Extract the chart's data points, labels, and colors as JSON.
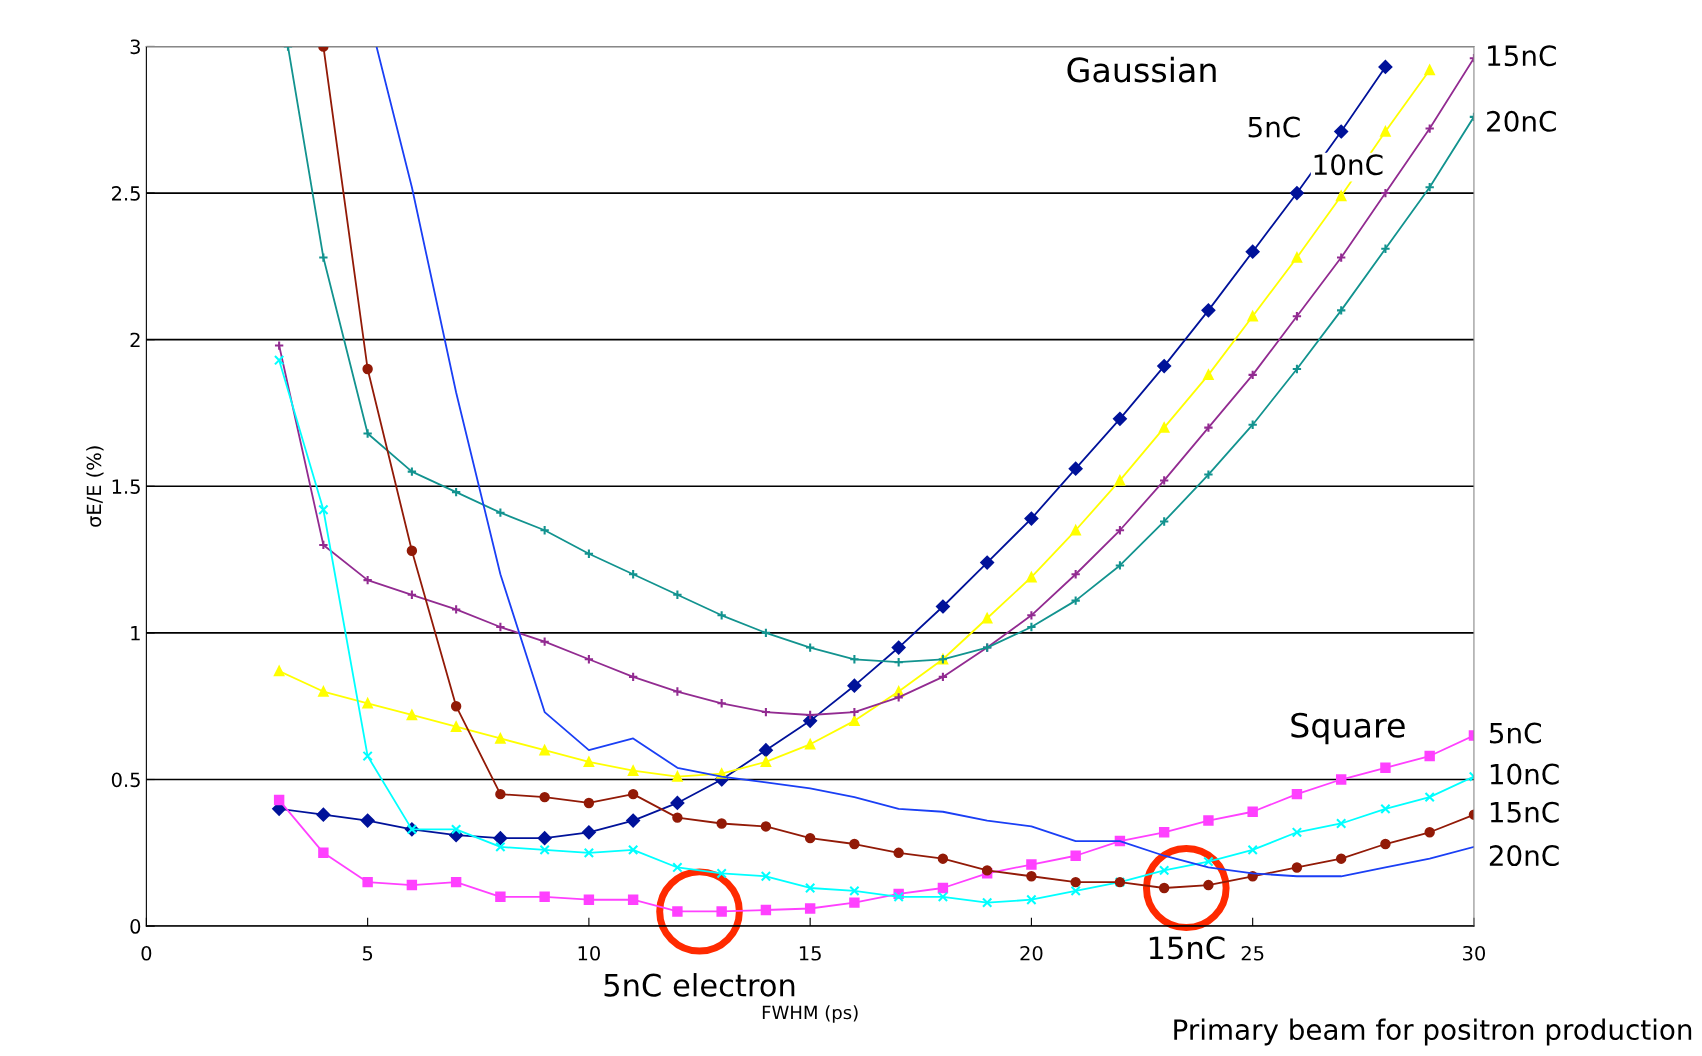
{
  "chart_data": {
    "type": "line",
    "xlabel": "FWHM (ps)",
    "ylabel": "σE/E (%)",
    "xlim": [
      0,
      30
    ],
    "xticks": [
      0,
      5,
      10,
      15,
      20,
      25,
      30
    ],
    "ylim": [
      0,
      3
    ],
    "yticks": [
      0,
      0.5,
      1,
      1.5,
      2,
      2.5,
      3
    ],
    "grid": "y",
    "legend": false,
    "series": [
      {
        "name": "5nC",
        "color": "#00129a",
        "marker": "diamond",
        "x": [
          3,
          4,
          5,
          6,
          7,
          8,
          9,
          10,
          11,
          12,
          13,
          14,
          15,
          16,
          17,
          18,
          19,
          20,
          21,
          22,
          23,
          24,
          25,
          26,
          27,
          28
        ],
        "values": [
          0.4,
          0.38,
          0.36,
          0.33,
          0.31,
          0.3,
          0.3,
          0.32,
          0.36,
          0.42,
          0.5,
          0.6,
          0.7,
          0.82,
          0.95,
          1.09,
          1.24,
          1.39,
          1.56,
          1.73,
          1.91,
          2.1,
          2.3,
          2.5,
          2.71,
          2.93
        ]
      },
      {
        "name": "10nC",
        "color": "#ffff00",
        "marker": "triangle",
        "x": [
          3,
          4,
          5,
          6,
          7,
          8,
          9,
          10,
          11,
          12,
          13,
          14,
          15,
          16,
          17,
          18,
          19,
          20,
          21,
          22,
          23,
          24,
          25,
          26,
          27,
          28,
          29
        ],
        "values": [
          0.87,
          0.8,
          0.76,
          0.72,
          0.68,
          0.64,
          0.6,
          0.56,
          0.53,
          0.51,
          0.52,
          0.56,
          0.62,
          0.7,
          0.8,
          0.91,
          1.05,
          1.19,
          1.35,
          1.52,
          1.7,
          1.88,
          2.08,
          2.28,
          2.49,
          2.71,
          2.92
        ]
      },
      {
        "name": "15nC",
        "color": "#922b91",
        "marker": "cross",
        "x": [
          3,
          4,
          5,
          6,
          7,
          8,
          9,
          10,
          11,
          12,
          13,
          14,
          15,
          16,
          17,
          18,
          19,
          20,
          21,
          22,
          23,
          24,
          25,
          26,
          27,
          28,
          29,
          30
        ],
        "values": [
          1.98,
          1.3,
          1.18,
          1.13,
          1.08,
          1.02,
          0.97,
          0.91,
          0.85,
          0.8,
          0.76,
          0.73,
          0.72,
          0.73,
          0.78,
          0.85,
          0.95,
          1.06,
          1.2,
          1.35,
          1.52,
          1.7,
          1.88,
          2.08,
          2.28,
          2.5,
          2.72,
          2.96
        ]
      },
      {
        "name": "20nC",
        "color": "#12938f",
        "marker": "cross",
        "x": [
          3.2,
          4,
          5,
          6,
          7,
          8,
          9,
          10,
          11,
          12,
          13,
          14,
          15,
          16,
          17,
          18,
          19,
          20,
          21,
          22,
          23,
          24,
          25,
          26,
          27,
          28,
          29,
          30
        ],
        "values": [
          3.0,
          2.28,
          1.68,
          1.55,
          1.48,
          1.41,
          1.35,
          1.27,
          1.2,
          1.13,
          1.06,
          1.0,
          0.95,
          0.91,
          0.9,
          0.91,
          0.95,
          1.02,
          1.11,
          1.23,
          1.38,
          1.54,
          1.71,
          1.9,
          2.1,
          2.31,
          2.52,
          2.76
        ]
      },
      {
        "name": "5nC",
        "color": "#ff40ff",
        "marker": "square",
        "x": [
          3,
          4,
          5,
          6,
          7,
          8,
          9,
          10,
          11,
          12,
          13,
          14,
          15,
          16,
          17,
          18,
          19,
          20,
          21,
          22,
          23,
          24,
          25,
          26,
          27,
          28,
          29,
          30
        ],
        "values": [
          0.43,
          0.25,
          0.15,
          0.14,
          0.15,
          0.1,
          0.1,
          0.09,
          0.09,
          0.05,
          0.05,
          0.055,
          0.06,
          0.08,
          0.11,
          0.13,
          0.18,
          0.21,
          0.24,
          0.29,
          0.32,
          0.36,
          0.39,
          0.45,
          0.5,
          0.54,
          0.58,
          0.65
        ]
      },
      {
        "name": "10nC",
        "color": "#00ffff",
        "marker": "x",
        "x": [
          3,
          4,
          5,
          6,
          7,
          8,
          9,
          10,
          11,
          12,
          13,
          14,
          15,
          16,
          17,
          18,
          19,
          20,
          21,
          22,
          23,
          24,
          25,
          26,
          27,
          28,
          29,
          30
        ],
        "values": [
          1.93,
          1.42,
          0.58,
          0.33,
          0.33,
          0.27,
          0.26,
          0.25,
          0.26,
          0.2,
          0.18,
          0.17,
          0.13,
          0.12,
          0.1,
          0.1,
          0.08,
          0.09,
          0.12,
          0.15,
          0.19,
          0.22,
          0.26,
          0.32,
          0.35,
          0.4,
          0.44,
          0.51
        ]
      },
      {
        "name": "15nC",
        "color": "#921a07",
        "marker": "circle",
        "x": [
          4.0,
          5,
          6,
          7,
          8,
          9,
          10,
          11,
          12,
          13,
          14,
          15,
          16,
          17,
          18,
          19,
          20,
          21,
          22,
          23,
          24,
          25,
          26,
          27,
          28,
          29,
          30
        ],
        "values": [
          3.0,
          1.9,
          1.28,
          0.75,
          0.45,
          0.44,
          0.42,
          0.45,
          0.37,
          0.35,
          0.34,
          0.3,
          0.28,
          0.25,
          0.23,
          0.19,
          0.17,
          0.15,
          0.15,
          0.13,
          0.14,
          0.17,
          0.2,
          0.23,
          0.28,
          0.32,
          0.38
        ]
      },
      {
        "name": "20nC",
        "color": "#1a3ff5",
        "marker": "none",
        "x": [
          5.2,
          6,
          7,
          8,
          9,
          10,
          11,
          12,
          13,
          14,
          15,
          16,
          17,
          18,
          19,
          20,
          21,
          22,
          23,
          24,
          25,
          26,
          27,
          28,
          29,
          30
        ],
        "values": [
          3.0,
          2.52,
          1.82,
          1.2,
          0.73,
          0.6,
          0.64,
          0.54,
          0.51,
          0.49,
          0.47,
          0.44,
          0.4,
          0.39,
          0.36,
          0.34,
          0.29,
          0.29,
          0.24,
          0.2,
          0.18,
          0.17,
          0.17,
          0.2,
          0.23,
          0.27
        ]
      }
    ],
    "annotations": [
      "Gaussian",
      "Square",
      {
        "text": "5nC electron",
        "x": 12.5,
        "y": 0.05
      },
      {
        "text": "15nC",
        "x": 23.5,
        "y": 0.13
      },
      "Primary beam for positron production"
    ]
  }
}
